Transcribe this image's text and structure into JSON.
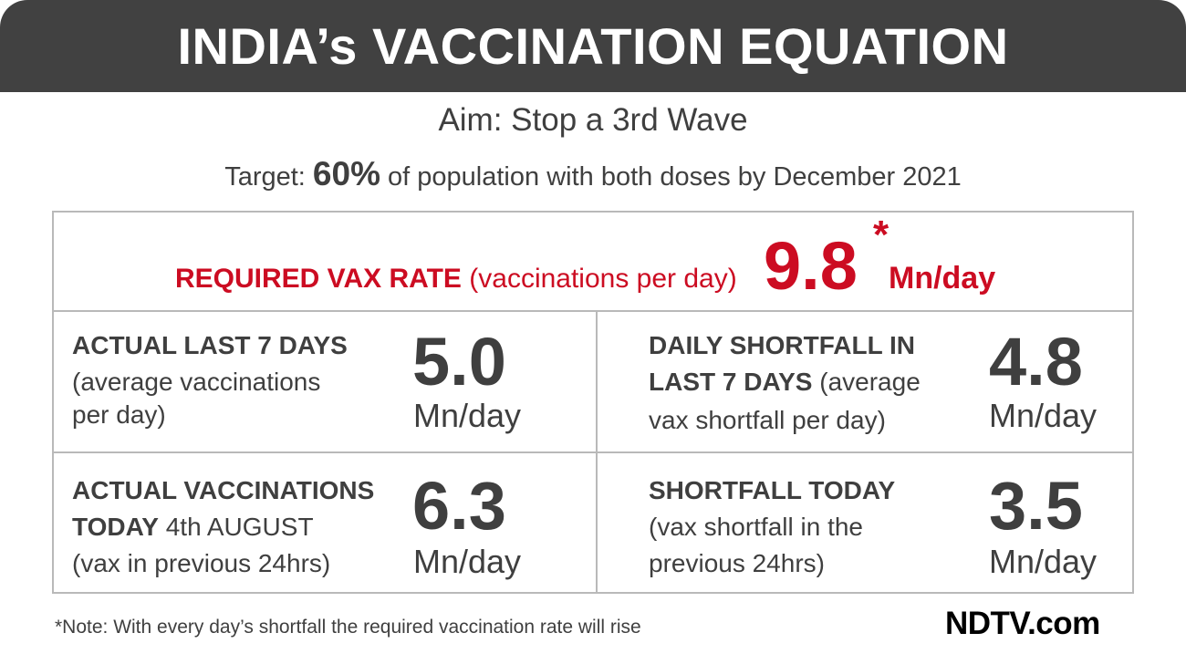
{
  "header": {
    "title": "INDIA’s VACCINATION EQUATION"
  },
  "aim": "Aim: Stop a 3rd Wave",
  "target": {
    "prefix": "Target:",
    "percent": "60%",
    "suffix": "of population with both doses by December 2021"
  },
  "required": {
    "label_bold": "REQUIRED VAX RATE",
    "label_rest": "(vaccinations per day)",
    "value": "9.8",
    "star": "*",
    "unit": "Mn/day"
  },
  "cells": [
    {
      "line1_bold": "ACTUAL LAST 7 DAYS",
      "line2": "(average vaccinations",
      "line3": "per day)",
      "value": "5.0",
      "unit": "Mn/day"
    },
    {
      "line1_bold": "DAILY SHORTFALL IN",
      "line2_bold": "LAST 7 DAYS",
      "line2_rest": "(average",
      "line3": "vax shortfall per day)",
      "value": "4.8",
      "unit": "Mn/day"
    },
    {
      "line1_bold": "ACTUAL VACCINATIONS",
      "line2_bold": "TODAY",
      "line2_rest": "4th AUGUST",
      "line3": "(vax in previous 24hrs)",
      "value": "6.3",
      "unit": "Mn/day"
    },
    {
      "line1_bold": "SHORTFALL TODAY",
      "line2": "(vax shortfall in the",
      "line3": "previous 24hrs)",
      "value": "3.5",
      "unit": "Mn/day"
    }
  ],
  "note": "*Note: With every day’s shortfall the required vaccination rate will rise",
  "logo": "NDTV.com",
  "colors": {
    "header_bg": "#414141",
    "accent_red": "#cc0c22",
    "text": "#3f3f3f",
    "border": "#b9b9b9"
  }
}
